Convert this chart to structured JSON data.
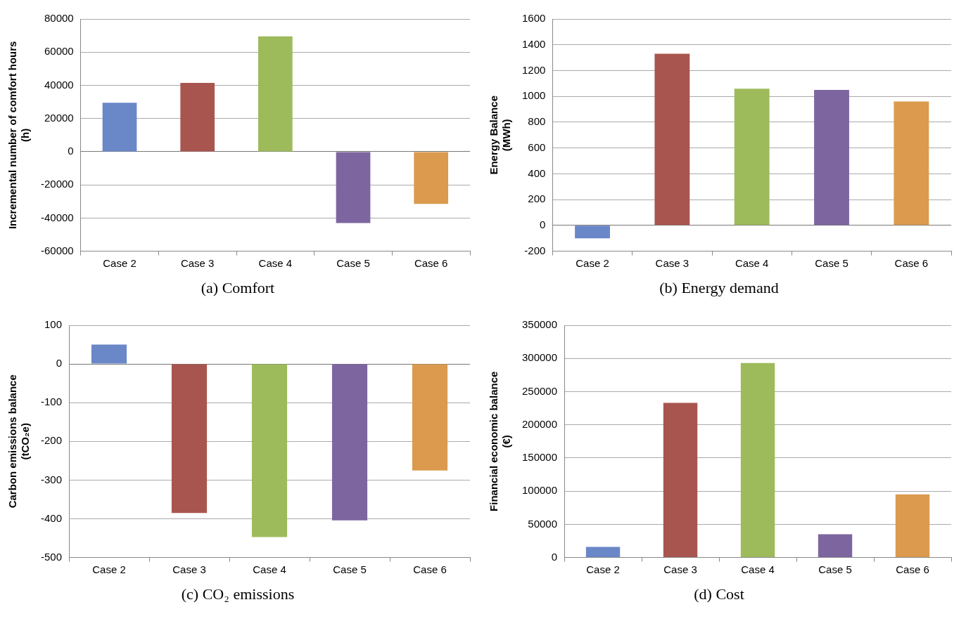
{
  "chart_data": [
    {
      "type": "bar",
      "title": "(a) Comfort",
      "ylabel": "Incremental number of comfort hours\n(h)",
      "categories": [
        "Case 2",
        "Case 3",
        "Case 4",
        "Case 5",
        "Case 6"
      ],
      "values": [
        29500,
        41500,
        69500,
        -43000,
        -31500
      ],
      "colors": [
        "#6a87c8",
        "#a9554f",
        "#9dbb5b",
        "#7d66a0",
        "#db9a4e"
      ],
      "ylim": [
        -60000,
        80000
      ],
      "yticks": [
        -60000,
        -40000,
        -20000,
        0,
        20000,
        40000,
        60000,
        80000
      ],
      "grid": "y",
      "legend": false
    },
    {
      "type": "bar",
      "title": "(b) Energy demand",
      "ylabel": "Energy Balance\n(MWh)",
      "categories": [
        "Case 2",
        "Case 3",
        "Case 4",
        "Case 5",
        "Case 6"
      ],
      "values": [
        -100,
        1330,
        1060,
        1050,
        960
      ],
      "colors": [
        "#6a87c8",
        "#a9554f",
        "#9dbb5b",
        "#7d66a0",
        "#db9a4e"
      ],
      "ylim": [
        -200,
        1600
      ],
      "yticks": [
        -200,
        0,
        200,
        400,
        600,
        800,
        1000,
        1200,
        1400,
        1600
      ],
      "grid": "y",
      "legend": false
    },
    {
      "type": "bar",
      "title": "(c) CO₂ emissions",
      "ylabel": "Carbon emissions balance\n(tCO₂e)",
      "categories": [
        "Case 2",
        "Case 3",
        "Case 4",
        "Case 5",
        "Case 6"
      ],
      "values": [
        50,
        -385,
        -447,
        -404,
        -275
      ],
      "colors": [
        "#6a87c8",
        "#a9554f",
        "#9dbb5b",
        "#7d66a0",
        "#db9a4e"
      ],
      "ylim": [
        -500,
        100
      ],
      "yticks": [
        -500,
        -400,
        -300,
        -200,
        -100,
        0,
        100
      ],
      "grid": "y",
      "legend": false
    },
    {
      "type": "bar",
      "title": "(d) Cost",
      "ylabel": "Financial economic balance\n(€)",
      "categories": [
        "Case 2",
        "Case 3",
        "Case 4",
        "Case 5",
        "Case 6"
      ],
      "values": [
        16000,
        233000,
        293000,
        35000,
        95000
      ],
      "colors": [
        "#6a87c8",
        "#a9554f",
        "#9dbb5b",
        "#7d66a0",
        "#db9a4e"
      ],
      "ylim": [
        0,
        350000
      ],
      "yticks": [
        0,
        50000,
        100000,
        150000,
        200000,
        250000,
        300000,
        350000
      ],
      "grid": "y",
      "legend": false
    }
  ]
}
